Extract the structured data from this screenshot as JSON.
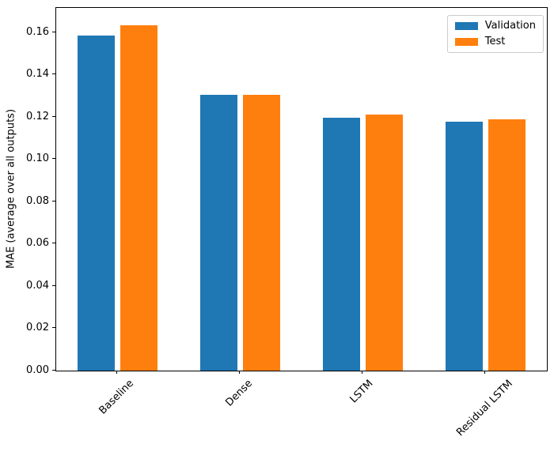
{
  "chart_data": {
    "type": "bar",
    "categories": [
      "Baseline",
      "Dense",
      "LSTM",
      "Residual LSTM"
    ],
    "series": [
      {
        "name": "Validation",
        "color": "#1f77b4",
        "values": [
          0.1585,
          0.1305,
          0.1195,
          0.1177
        ]
      },
      {
        "name": "Test",
        "color": "#ff7f0e",
        "values": [
          0.1635,
          0.1305,
          0.121,
          0.119
        ]
      }
    ],
    "title": "",
    "xlabel": "",
    "ylabel": "MAE (average over all outputs)",
    "ylim": [
      0,
      0.1716
    ],
    "yticks": [
      0.0,
      0.02,
      0.04,
      0.06,
      0.08,
      0.1,
      0.12,
      0.14,
      0.16
    ],
    "ytick_labels": [
      "0.00",
      "0.02",
      "0.04",
      "0.06",
      "0.08",
      "0.10",
      "0.12",
      "0.14",
      "0.16"
    ],
    "xtick_rotation": 45,
    "grid": false,
    "legend_position": "upper right",
    "axis_color": "#000000",
    "legend_border_color": "#cccccc",
    "background_color": "#ffffff"
  }
}
